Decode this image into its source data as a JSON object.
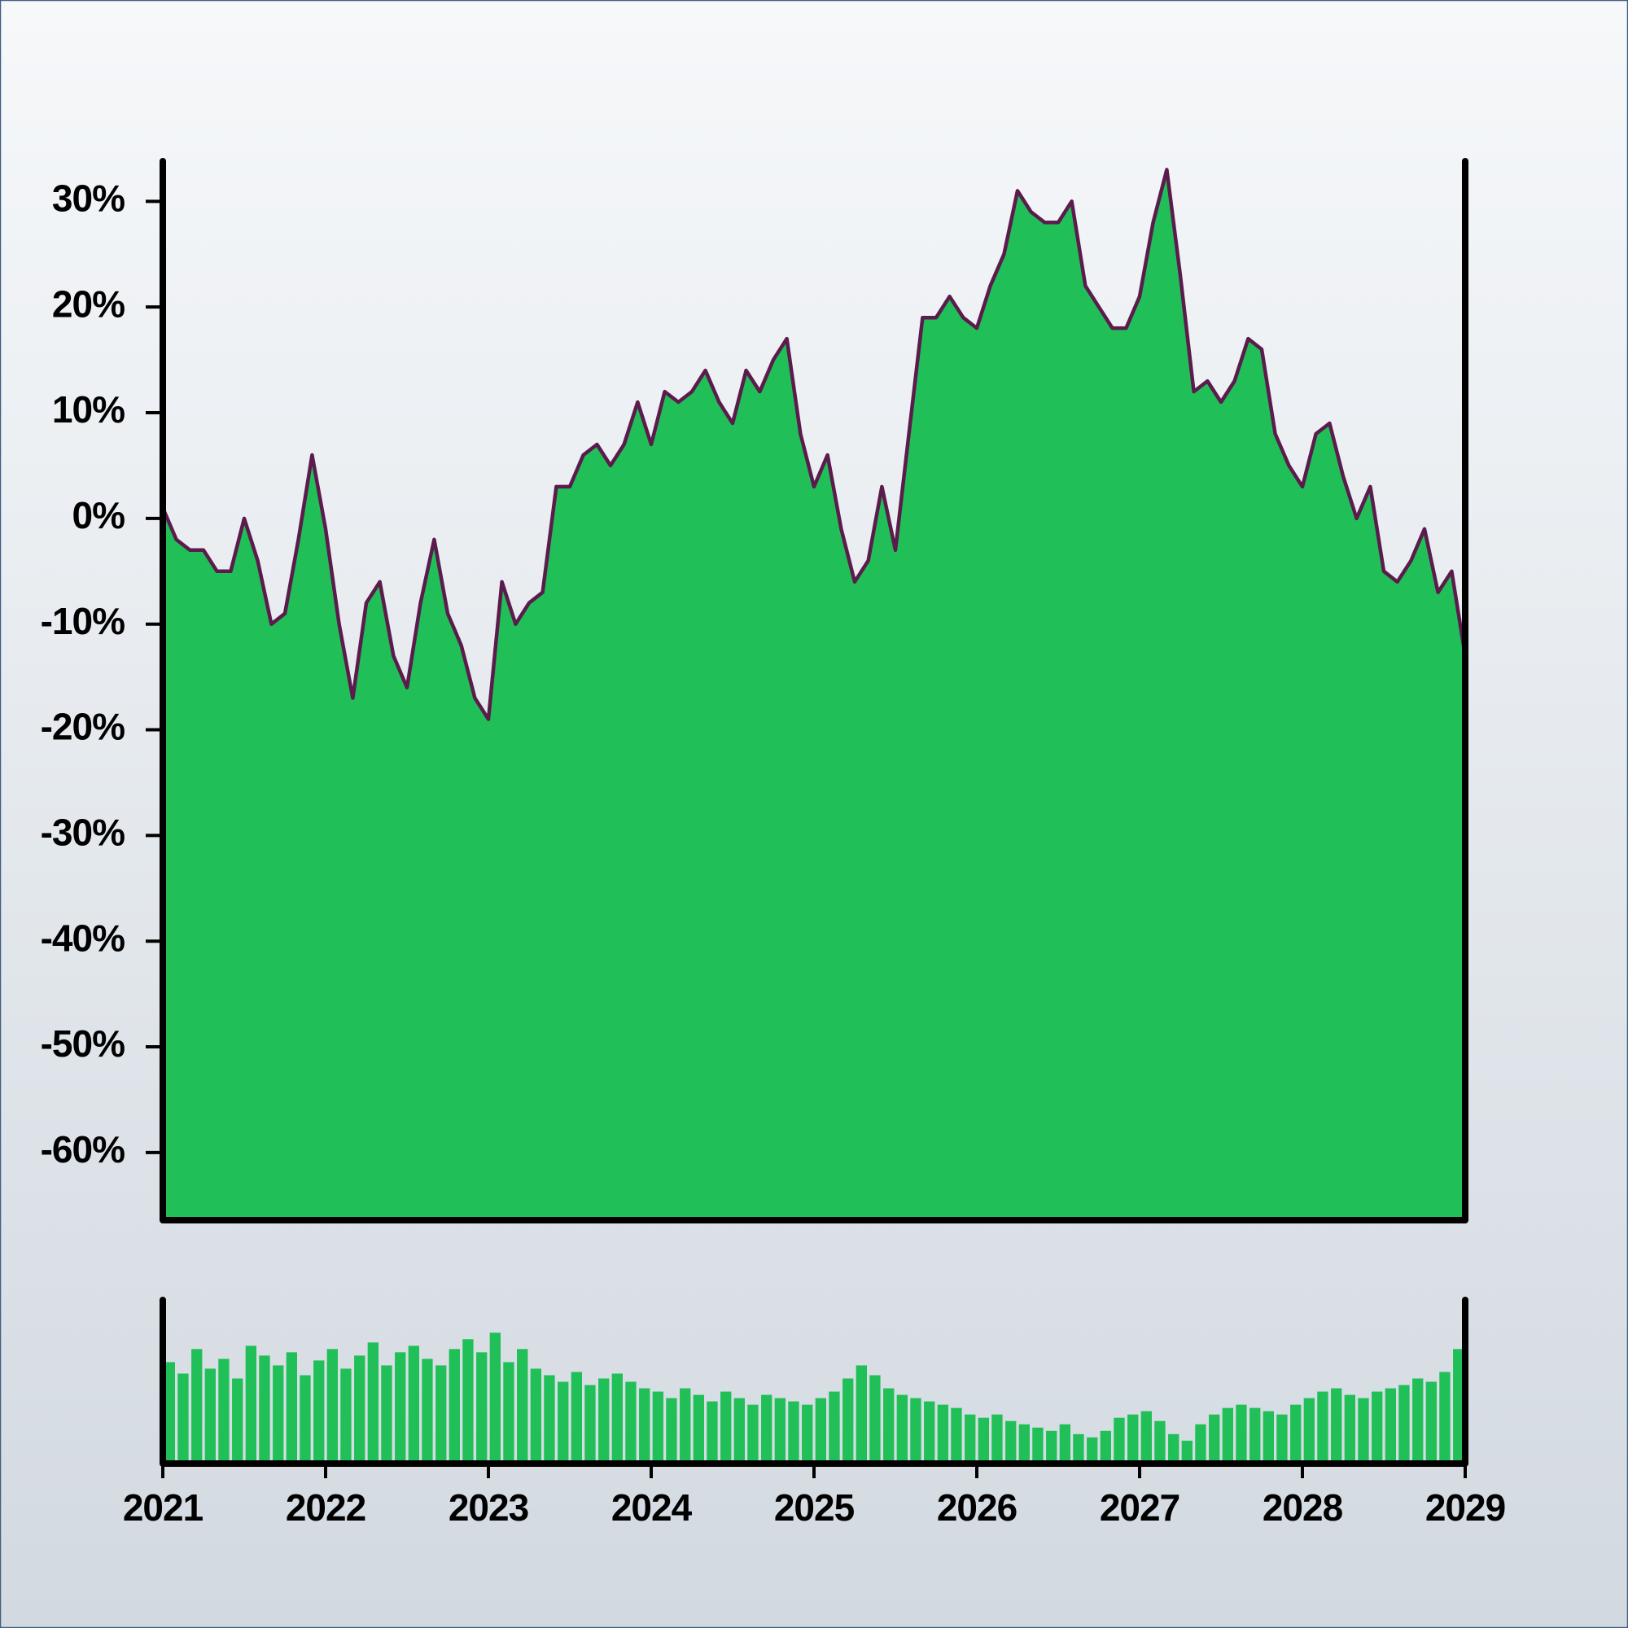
{
  "chart_data": [
    {
      "type": "area",
      "color": "#21bf58",
      "line_color": "#5b1b4c",
      "x": [
        2021,
        2021.083,
        2021.167,
        2021.25,
        2021.333,
        2021.417,
        2021.5,
        2021.583,
        2021.667,
        2021.75,
        2021.833,
        2021.917,
        2022,
        2022.083,
        2022.167,
        2022.25,
        2022.333,
        2022.417,
        2022.5,
        2022.583,
        2022.667,
        2022.75,
        2022.833,
        2022.917,
        2023,
        2023.083,
        2023.167,
        2023.25,
        2023.333,
        2023.417,
        2023.5,
        2023.583,
        2023.667,
        2023.75,
        2023.833,
        2023.917,
        2024,
        2024.083,
        2024.167,
        2024.25,
        2024.333,
        2024.417,
        2024.5,
        2024.583,
        2024.667,
        2024.75,
        2024.833,
        2024.917,
        2025,
        2025.083,
        2025.167,
        2025.25,
        2025.333,
        2025.417,
        2025.5,
        2025.583,
        2025.667,
        2025.75,
        2025.833,
        2025.917,
        2026,
        2026.083,
        2026.167,
        2026.25,
        2026.333,
        2026.417,
        2026.5,
        2026.583,
        2026.667,
        2026.75,
        2026.833,
        2026.917,
        2027,
        2027.083,
        2027.167,
        2027.25,
        2027.333,
        2027.417,
        2027.5,
        2027.583,
        2027.667,
        2027.75,
        2027.833,
        2027.917,
        2028,
        2028.083,
        2028.167,
        2028.25,
        2028.333,
        2028.417,
        2028.5,
        2028.583,
        2028.667,
        2028.75,
        2028.833,
        2028.917,
        2029
      ],
      "values": [
        1,
        -2,
        -3,
        -3,
        -5,
        -5,
        0,
        -4,
        -10,
        -9,
        -2,
        6,
        -1,
        -10,
        -17,
        -8,
        -6,
        -13,
        -16,
        -8,
        -2,
        -9,
        -12,
        -17,
        -19,
        -6,
        -10,
        -8,
        -7,
        3,
        3,
        6,
        7,
        5,
        7,
        11,
        7,
        12,
        11,
        12,
        14,
        11,
        9,
        14,
        12,
        15,
        17,
        8,
        3,
        6,
        -1,
        -6,
        -4,
        3,
        -3,
        8,
        19,
        19,
        21,
        19,
        18,
        22,
        25,
        31,
        29,
        28,
        28,
        30,
        22,
        20,
        18,
        18,
        21,
        28,
        33,
        23,
        12,
        13,
        11,
        13,
        17,
        16,
        8,
        5,
        3,
        8,
        9,
        4,
        0,
        3,
        -5,
        -6,
        -4,
        -1,
        -7,
        -5,
        -13
      ],
      "xlim": [
        2021,
        2029
      ],
      "ylim": [
        -66.4,
        33.8
      ],
      "yticks": [
        {
          "value": -60,
          "label": "-60%"
        },
        {
          "value": -50,
          "label": "-50%"
        },
        {
          "value": -40,
          "label": "-40%"
        },
        {
          "value": -30,
          "label": "-30%"
        },
        {
          "value": -20,
          "label": "-20%"
        },
        {
          "value": -10,
          "label": "-10%"
        },
        {
          "value": 0,
          "label": "0%"
        },
        {
          "value": 10,
          "label": "10%"
        },
        {
          "value": 20,
          "label": "20%"
        },
        {
          "value": 30,
          "label": "30%"
        }
      ]
    },
    {
      "type": "bar",
      "color": "#21bf58",
      "x": [
        2021,
        2021.083,
        2021.167,
        2021.25,
        2021.333,
        2021.417,
        2021.5,
        2021.583,
        2021.667,
        2021.75,
        2021.833,
        2021.917,
        2022,
        2022.083,
        2022.167,
        2022.25,
        2022.333,
        2022.417,
        2022.5,
        2022.583,
        2022.667,
        2022.75,
        2022.833,
        2022.917,
        2023,
        2023.083,
        2023.167,
        2023.25,
        2023.333,
        2023.417,
        2023.5,
        2023.583,
        2023.667,
        2023.75,
        2023.833,
        2023.917,
        2024,
        2024.083,
        2024.167,
        2024.25,
        2024.333,
        2024.417,
        2024.5,
        2024.583,
        2024.667,
        2024.75,
        2024.833,
        2024.917,
        2025,
        2025.083,
        2025.167,
        2025.25,
        2025.333,
        2025.417,
        2025.5,
        2025.583,
        2025.667,
        2025.75,
        2025.833,
        2025.917,
        2026,
        2026.083,
        2026.167,
        2026.25,
        2026.333,
        2026.417,
        2026.5,
        2026.583,
        2026.667,
        2026.75,
        2026.833,
        2026.917,
        2027,
        2027.083,
        2027.167,
        2027.25,
        2027.333,
        2027.417,
        2027.5,
        2027.583,
        2027.667,
        2027.75,
        2027.833,
        2027.917,
        2028,
        2028.083,
        2028.167,
        2028.25,
        2028.333,
        2028.417,
        2028.5,
        2028.583,
        2028.667,
        2028.75,
        2028.833,
        2028.917
      ],
      "values": [
        62,
        55,
        70,
        58,
        64,
        52,
        72,
        66,
        60,
        68,
        54,
        63,
        70,
        58,
        66,
        74,
        60,
        68,
        72,
        64,
        60,
        70,
        76,
        68,
        80,
        62,
        70,
        58,
        54,
        50,
        56,
        48,
        52,
        55,
        50,
        46,
        44,
        40,
        46,
        42,
        38,
        44,
        40,
        36,
        42,
        40,
        38,
        36,
        40,
        44,
        52,
        60,
        54,
        46,
        42,
        40,
        38,
        36,
        34,
        30,
        28,
        30,
        26,
        24,
        22,
        20,
        24,
        18,
        16,
        20,
        28,
        30,
        32,
        26,
        18,
        14,
        24,
        30,
        34,
        36,
        34,
        32,
        30,
        36,
        40,
        44,
        46,
        42,
        40,
        44,
        46,
        48,
        52,
        50,
        56,
        70
      ],
      "xlim": [
        2021,
        2029
      ],
      "ylim": [
        0,
        100
      ],
      "xticks": [
        2021,
        2022,
        2023,
        2024,
        2025,
        2026,
        2027,
        2028,
        2029
      ]
    }
  ]
}
